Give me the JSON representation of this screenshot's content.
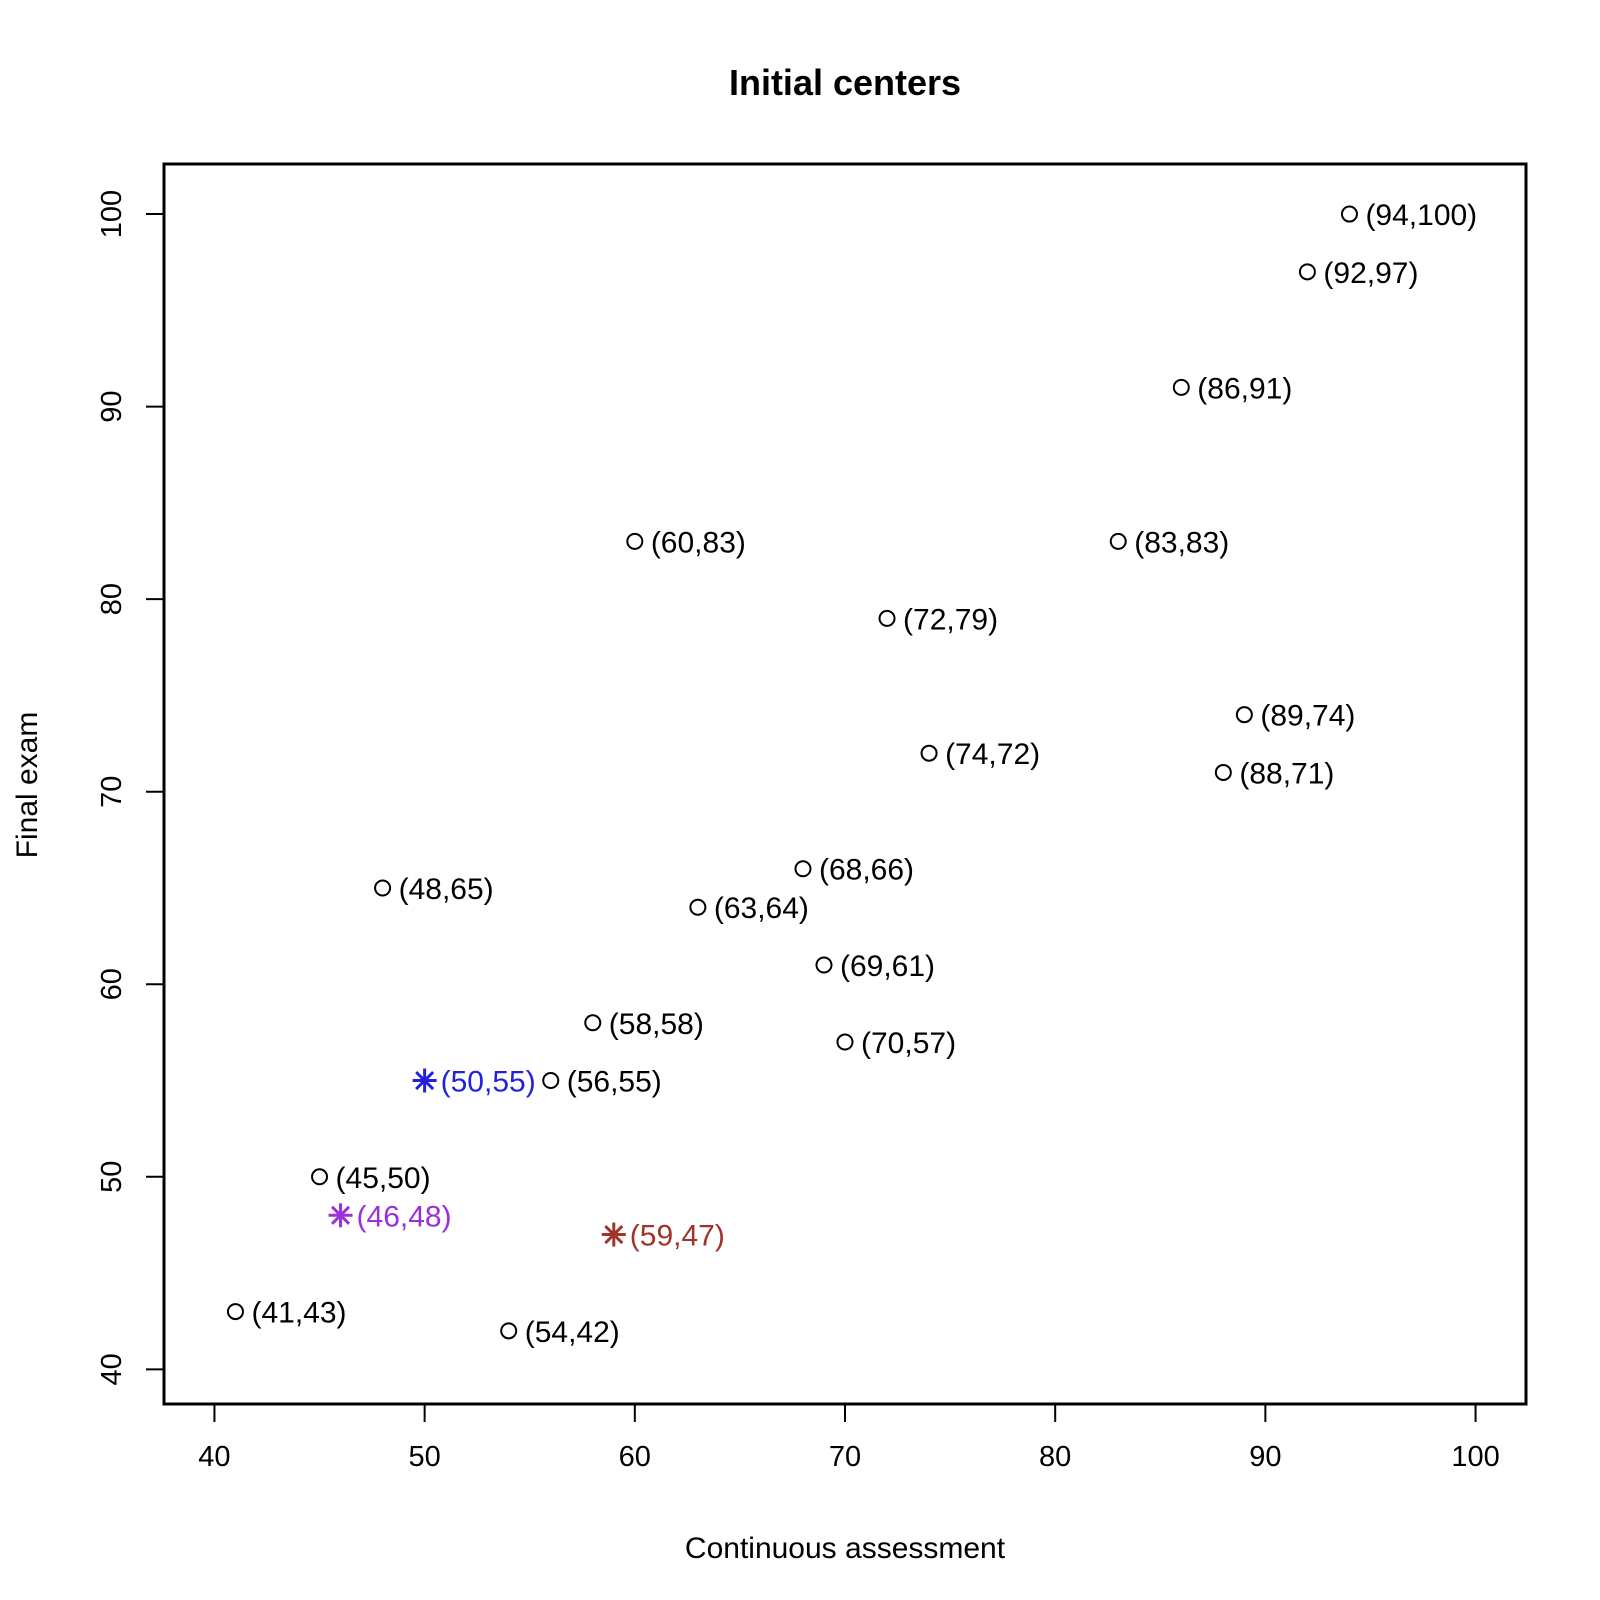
{
  "chart_data": {
    "type": "scatter",
    "title": "Initial centers",
    "xlabel": "Continuous assessment",
    "ylabel": "Final exam",
    "xlim": [
      37.6,
      102.4
    ],
    "ylim": [
      38.2,
      102.6
    ],
    "x_ticks": [
      40,
      50,
      60,
      70,
      80,
      90,
      100
    ],
    "y_ticks": [
      40,
      50,
      60,
      70,
      80,
      90,
      100
    ],
    "grid": false,
    "series": [
      {
        "marker": "circle",
        "color": "#000000",
        "points": [
          {
            "x": 94,
            "y": 100,
            "label": "(94,100)"
          },
          {
            "x": 92,
            "y": 97,
            "label": "(92,97)"
          },
          {
            "x": 86,
            "y": 91,
            "label": "(86,91)"
          },
          {
            "x": 60,
            "y": 83,
            "label": "(60,83)"
          },
          {
            "x": 83,
            "y": 83,
            "label": "(83,83)"
          },
          {
            "x": 72,
            "y": 79,
            "label": "(72,79)"
          },
          {
            "x": 89,
            "y": 74,
            "label": "(89,74)"
          },
          {
            "x": 74,
            "y": 72,
            "label": "(74,72)"
          },
          {
            "x": 88,
            "y": 71,
            "label": "(88,71)"
          },
          {
            "x": 68,
            "y": 66,
            "label": "(68,66)"
          },
          {
            "x": 48,
            "y": 65,
            "label": "(48,65)"
          },
          {
            "x": 63,
            "y": 64,
            "label": "(63,64)"
          },
          {
            "x": 69,
            "y": 61,
            "label": "(69,61)"
          },
          {
            "x": 58,
            "y": 58,
            "label": "(58,58)"
          },
          {
            "x": 70,
            "y": 57,
            "label": "(70,57)"
          },
          {
            "x": 56,
            "y": 55,
            "label": "(56,55)"
          },
          {
            "x": 45,
            "y": 50,
            "label": "(45,50)"
          },
          {
            "x": 41,
            "y": 43,
            "label": "(41,43)"
          },
          {
            "x": 54,
            "y": 42,
            "label": "(54,42)"
          }
        ]
      },
      {
        "marker": "asterisk",
        "color": "#2222dd",
        "points": [
          {
            "x": 50,
            "y": 55,
            "label": "(50,55)"
          }
        ]
      },
      {
        "marker": "asterisk",
        "color": "#9b30d9",
        "points": [
          {
            "x": 46,
            "y": 48,
            "label": "(46,48)"
          }
        ]
      },
      {
        "marker": "asterisk",
        "color": "#a0332b",
        "points": [
          {
            "x": 59,
            "y": 47,
            "label": "(59,47)"
          }
        ]
      }
    ]
  }
}
